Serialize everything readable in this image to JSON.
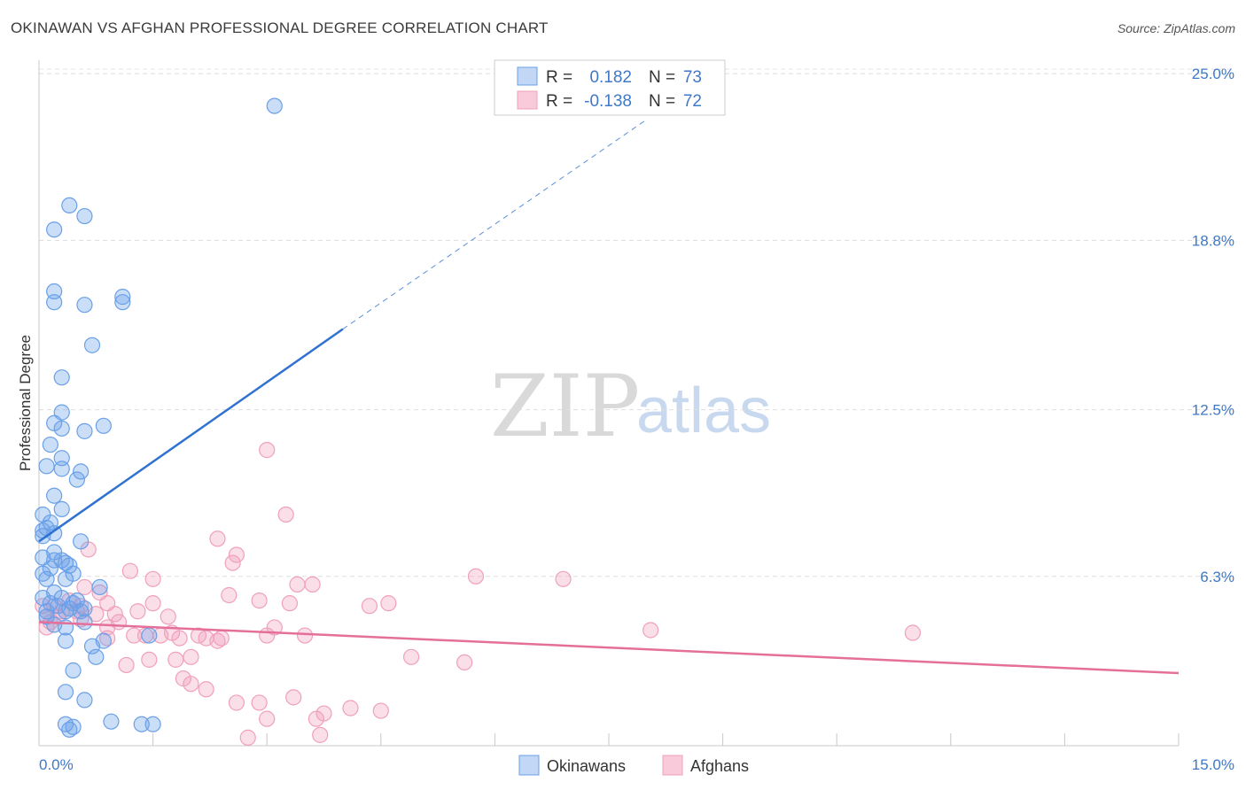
{
  "title": "OKINAWAN VS AFGHAN PROFESSIONAL DEGREE CORRELATION CHART",
  "source": "Source: ZipAtlas.com",
  "watermark": {
    "zip": "ZIP",
    "atlas": "atlas"
  },
  "legend": {
    "r_label": "R =",
    "n_label": "N =",
    "rows": [
      {
        "r": "0.182",
        "n": "73"
      },
      {
        "r": "-0.138",
        "n": "72"
      }
    ]
  },
  "chart_data": {
    "type": "scatter",
    "title": "OKINAWAN VS AFGHAN PROFESSIONAL DEGREE CORRELATION CHART",
    "xlabel": "",
    "ylabel": "Professional Degree",
    "xlim": [
      0,
      15
    ],
    "ylim": [
      0,
      25.5
    ],
    "x_tick_labels": {
      "min": "0.0%",
      "max": "15.0%"
    },
    "y_ticks": [
      {
        "value": 6.3,
        "label": "6.3%"
      },
      {
        "value": 12.5,
        "label": "12.5%"
      },
      {
        "value": 18.8,
        "label": "18.8%"
      },
      {
        "value": 25.0,
        "label": "25.0%"
      }
    ],
    "colors": {
      "okinawans": "#6aa0e8",
      "afghans": "#f0a0bc",
      "okinawans_line": "#2f72d0",
      "afghans_line": "#e4709a"
    },
    "series": [
      {
        "name": "Okinawans",
        "r": 0.182,
        "n": 73,
        "trend": {
          "x0": 0,
          "y0": 7.6,
          "x1": 4.0,
          "y1": 15.5,
          "dash_to_x": 8.0,
          "dash_to_y": 23.3
        },
        "points": [
          [
            3.1,
            23.8
          ],
          [
            0.4,
            20.1
          ],
          [
            0.6,
            19.7
          ],
          [
            0.2,
            19.2
          ],
          [
            0.2,
            16.9
          ],
          [
            0.6,
            16.4
          ],
          [
            1.1,
            16.7
          ],
          [
            0.2,
            16.5
          ],
          [
            1.1,
            16.5
          ],
          [
            0.7,
            14.9
          ],
          [
            0.3,
            13.7
          ],
          [
            0.3,
            12.4
          ],
          [
            0.2,
            12.0
          ],
          [
            0.3,
            11.8
          ],
          [
            0.6,
            11.7
          ],
          [
            0.85,
            11.9
          ],
          [
            0.15,
            11.2
          ],
          [
            0.3,
            10.7
          ],
          [
            0.1,
            10.4
          ],
          [
            0.3,
            10.3
          ],
          [
            0.55,
            10.2
          ],
          [
            0.5,
            9.9
          ],
          [
            0.2,
            9.3
          ],
          [
            0.3,
            8.8
          ],
          [
            0.05,
            8.6
          ],
          [
            0.15,
            8.3
          ],
          [
            0.05,
            8.0
          ],
          [
            0.2,
            7.9
          ],
          [
            0.1,
            8.1
          ],
          [
            0.55,
            7.6
          ],
          [
            0.05,
            7.0
          ],
          [
            0.2,
            6.9
          ],
          [
            0.35,
            6.8
          ],
          [
            0.4,
            6.7
          ],
          [
            0.15,
            6.6
          ],
          [
            0.05,
            6.4
          ],
          [
            0.1,
            6.2
          ],
          [
            0.45,
            6.4
          ],
          [
            0.35,
            6.2
          ],
          [
            0.8,
            5.9
          ],
          [
            0.2,
            5.7
          ],
          [
            0.05,
            5.5
          ],
          [
            0.15,
            5.3
          ],
          [
            0.3,
            5.5
          ],
          [
            0.5,
            5.4
          ],
          [
            0.1,
            5.0
          ],
          [
            0.35,
            5.0
          ],
          [
            0.4,
            5.1
          ],
          [
            0.55,
            5.0
          ],
          [
            0.2,
            4.5
          ],
          [
            0.35,
            4.4
          ],
          [
            0.6,
            4.6
          ],
          [
            0.85,
            3.9
          ],
          [
            0.35,
            3.9
          ],
          [
            0.7,
            3.7
          ],
          [
            0.75,
            3.3
          ],
          [
            0.45,
            2.8
          ],
          [
            0.35,
            2.0
          ],
          [
            0.6,
            1.7
          ],
          [
            0.35,
            0.8
          ],
          [
            0.45,
            0.7
          ],
          [
            0.95,
            0.9
          ],
          [
            1.35,
            0.8
          ],
          [
            1.5,
            0.8
          ],
          [
            0.4,
            0.6
          ],
          [
            1.45,
            4.1
          ],
          [
            0.1,
            4.8
          ],
          [
            0.25,
            5.2
          ],
          [
            0.45,
            5.3
          ],
          [
            0.6,
            5.1
          ],
          [
            0.3,
            6.9
          ],
          [
            0.2,
            7.2
          ],
          [
            0.05,
            7.8
          ]
        ]
      },
      {
        "name": "Afghans",
        "r": -0.138,
        "n": 72,
        "trend": {
          "x0": 0,
          "y0": 4.6,
          "x1": 15.0,
          "y1": 2.7
        },
        "points": [
          [
            3.0,
            11.0
          ],
          [
            3.25,
            8.6
          ],
          [
            2.35,
            7.7
          ],
          [
            0.65,
            7.3
          ],
          [
            2.6,
            7.1
          ],
          [
            2.55,
            6.8
          ],
          [
            1.2,
            6.5
          ],
          [
            1.5,
            6.2
          ],
          [
            6.9,
            6.2
          ],
          [
            5.75,
            6.3
          ],
          [
            3.4,
            6.0
          ],
          [
            3.6,
            6.0
          ],
          [
            0.6,
            5.9
          ],
          [
            0.8,
            5.7
          ],
          [
            2.5,
            5.6
          ],
          [
            2.9,
            5.4
          ],
          [
            3.3,
            5.3
          ],
          [
            0.9,
            5.3
          ],
          [
            1.5,
            5.3
          ],
          [
            4.35,
            5.2
          ],
          [
            4.6,
            5.3
          ],
          [
            1.3,
            5.0
          ],
          [
            0.75,
            4.9
          ],
          [
            1.0,
            4.9
          ],
          [
            1.7,
            4.8
          ],
          [
            0.1,
            4.8
          ],
          [
            0.3,
            5.0
          ],
          [
            0.05,
            5.2
          ],
          [
            0.5,
            5.0
          ],
          [
            0.55,
            4.7
          ],
          [
            0.15,
            4.6
          ],
          [
            0.25,
            4.8
          ],
          [
            1.05,
            4.6
          ],
          [
            0.9,
            4.4
          ],
          [
            3.1,
            4.4
          ],
          [
            1.25,
            4.1
          ],
          [
            1.4,
            4.1
          ],
          [
            1.6,
            4.1
          ],
          [
            1.75,
            4.2
          ],
          [
            1.85,
            4.0
          ],
          [
            2.1,
            4.1
          ],
          [
            2.2,
            4.0
          ],
          [
            2.35,
            3.9
          ],
          [
            2.4,
            4.0
          ],
          [
            3.0,
            4.1
          ],
          [
            3.5,
            4.1
          ],
          [
            8.05,
            4.3
          ],
          [
            11.5,
            4.2
          ],
          [
            0.9,
            4.0
          ],
          [
            1.8,
            3.2
          ],
          [
            1.45,
            3.2
          ],
          [
            2.0,
            3.3
          ],
          [
            4.9,
            3.3
          ],
          [
            5.6,
            3.1
          ],
          [
            1.15,
            3.0
          ],
          [
            2.0,
            2.3
          ],
          [
            2.2,
            2.1
          ],
          [
            1.9,
            2.5
          ],
          [
            3.35,
            1.8
          ],
          [
            2.6,
            1.6
          ],
          [
            2.9,
            1.6
          ],
          [
            3.75,
            1.2
          ],
          [
            4.1,
            1.4
          ],
          [
            4.5,
            1.3
          ],
          [
            3.65,
            1.0
          ],
          [
            3.0,
            1.0
          ],
          [
            3.7,
            0.4
          ],
          [
            2.75,
            0.3
          ],
          [
            0.2,
            5.2
          ],
          [
            0.4,
            5.4
          ],
          [
            0.55,
            5.2
          ],
          [
            0.1,
            4.4
          ]
        ]
      }
    ]
  },
  "bottom_legend": [
    {
      "label": "Okinawans"
    },
    {
      "label": "Afghans"
    }
  ]
}
